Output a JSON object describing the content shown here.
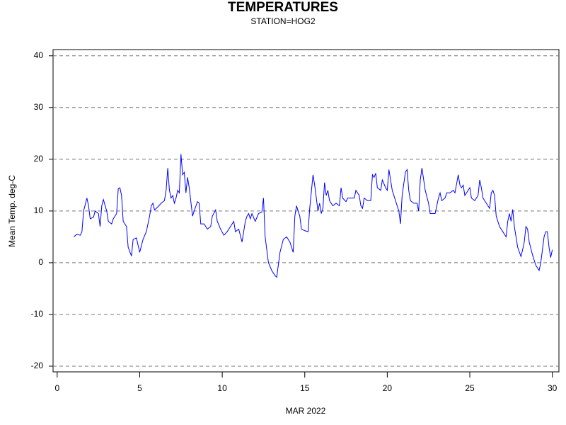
{
  "chart_data": {
    "type": "line",
    "title": "TEMPERATURES",
    "subtitle": "STATION=HOG2",
    "x_label": "MAR 2022",
    "y_label": "Mean Temp. deg-C",
    "color": "#0000ff",
    "grid": true,
    "xlim": [
      -0.25,
      30.4
    ],
    "ylim": [
      -21.1,
      41.2
    ],
    "xticks": [
      0,
      5,
      10,
      15,
      20,
      25,
      30
    ],
    "yticks": [
      -20,
      -10,
      0,
      10,
      20,
      30,
      40
    ],
    "x": [
      1.0,
      1.2,
      1.4,
      1.5,
      1.6,
      1.8,
      1.9,
      2.0,
      2.2,
      2.3,
      2.5,
      2.6,
      2.7,
      2.8,
      3.0,
      3.1,
      3.3,
      3.4,
      3.6,
      3.7,
      3.8,
      3.9,
      4.0,
      4.2,
      4.3,
      4.5,
      4.6,
      4.8,
      5.0,
      5.2,
      5.4,
      5.6,
      5.7,
      5.8,
      5.9,
      6.1,
      6.3,
      6.5,
      6.6,
      6.7,
      6.8,
      6.9,
      7.0,
      7.1,
      7.2,
      7.3,
      7.4,
      7.5,
      7.6,
      7.7,
      7.8,
      7.9,
      8.0,
      8.2,
      8.3,
      8.5,
      8.6,
      8.7,
      8.9,
      9.1,
      9.3,
      9.4,
      9.6,
      9.7,
      9.9,
      10.1,
      10.3,
      10.5,
      10.7,
      10.8,
      11.0,
      11.2,
      11.4,
      11.5,
      11.6,
      11.7,
      11.8,
      12.0,
      12.2,
      12.4,
      12.5,
      12.6,
      12.8,
      13.0,
      13.2,
      13.3,
      13.5,
      13.7,
      13.9,
      14.1,
      14.3,
      14.4,
      14.5,
      14.7,
      14.8,
      15.0,
      15.2,
      15.3,
      15.5,
      15.6,
      15.8,
      15.9,
      16.0,
      16.1,
      16.2,
      16.3,
      16.4,
      16.5,
      16.7,
      16.9,
      17.1,
      17.2,
      17.3,
      17.5,
      17.6,
      17.8,
      18.0,
      18.1,
      18.3,
      18.4,
      18.5,
      18.6,
      18.8,
      19.0,
      19.1,
      19.2,
      19.3,
      19.4,
      19.6,
      19.7,
      19.9,
      20.0,
      20.1,
      20.3,
      20.4,
      20.5,
      20.7,
      20.8,
      20.9,
      21.1,
      21.2,
      21.3,
      21.4,
      21.6,
      21.8,
      21.9,
      22.0,
      22.1,
      22.3,
      22.5,
      22.6,
      22.9,
      23.1,
      23.2,
      23.3,
      23.5,
      23.6,
      23.8,
      24.0,
      24.1,
      24.3,
      24.4,
      24.5,
      24.6,
      24.7,
      24.9,
      25.0,
      25.1,
      25.3,
      25.5,
      25.6,
      25.7,
      25.8,
      26.0,
      26.2,
      26.3,
      26.4,
      26.5,
      26.6,
      26.8,
      27.0,
      27.2,
      27.3,
      27.4,
      27.5,
      27.6,
      27.7,
      27.9,
      28.1,
      28.2,
      28.3,
      28.4,
      28.5,
      28.6,
      28.8,
      29.0,
      29.2,
      29.3,
      29.5,
      29.6,
      29.7,
      29.8,
      29.9,
      30.0
    ],
    "values": [
      5.0,
      5.5,
      5.3,
      6,
      10,
      12.5,
      11,
      8.5,
      8.8,
      10,
      9.5,
      7,
      11,
      12.2,
      10,
      8,
      7.5,
      8.5,
      9.5,
      14.3,
      14.5,
      13,
      8,
      7,
      3,
      1.3,
      4.5,
      4.8,
      2,
      4.5,
      6,
      9,
      11,
      11.5,
      10.2,
      10.8,
      11.5,
      12,
      14,
      18.3,
      14,
      12.5,
      13,
      11.5,
      12.5,
      14,
      13.5,
      21,
      17,
      17.5,
      13.5,
      16.5,
      14.5,
      9,
      10,
      11.8,
      11.5,
      7.5,
      7.5,
      6.5,
      7,
      9,
      10.2,
      8,
      6.5,
      5.3,
      6,
      7,
      8,
      6,
      6.5,
      4,
      8,
      9,
      9.5,
      8.5,
      9.5,
      8,
      9.5,
      9.8,
      12.5,
      5,
      0,
      -1.5,
      -2.5,
      -2.8,
      2,
      4.5,
      5,
      4,
      2,
      9,
      11,
      9,
      6.5,
      6.2,
      6,
      10.5,
      17,
      15,
      10,
      11.5,
      9.5,
      10.5,
      15.5,
      13,
      14,
      12,
      11,
      11.5,
      11,
      14.5,
      12.5,
      11.8,
      12.5,
      12.5,
      12.5,
      14,
      13,
      11,
      10.5,
      12.5,
      12,
      12,
      17,
      16.5,
      17.3,
      14.5,
      14,
      16,
      14.5,
      14,
      18,
      14,
      13,
      12,
      10,
      7.5,
      13,
      17.5,
      18,
      14,
      12,
      11.5,
      11.5,
      10,
      16,
      18.3,
      14,
      11.5,
      9.5,
      9.5,
      12.5,
      13.5,
      12,
      12.5,
      13.5,
      13.5,
      14,
      13.5,
      17,
      15,
      14.5,
      15,
      13,
      14,
      14.5,
      12.5,
      12,
      13,
      16,
      14.5,
      12.5,
      11.5,
      10.5,
      13.5,
      14,
      13,
      9,
      7,
      6,
      5,
      8,
      9.5,
      8,
      10.3,
      7,
      3,
      1.2,
      2.5,
      4,
      7,
      6.5,
      4,
      1.5,
      -0.5,
      -1.5,
      0,
      5,
      6,
      6,
      3,
      1,
      2.5
    ]
  }
}
